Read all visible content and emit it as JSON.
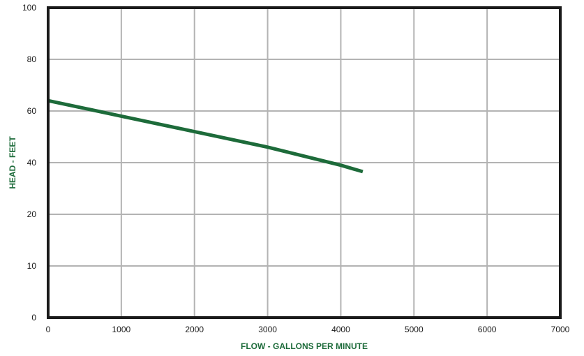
{
  "chart_data": {
    "type": "line",
    "title": "",
    "xlabel": "FLOW - GALLONS PER MINUTE",
    "ylabel": "HEAD - FEET",
    "xlim": [
      0,
      7000
    ],
    "x_ticks": [
      "0",
      "1000",
      "2000",
      "3000",
      "4000",
      "5000",
      "6000",
      "7000"
    ],
    "x_tick_values": [
      0,
      1000,
      2000,
      3000,
      4000,
      5000,
      6000,
      7000
    ],
    "y_ticks": [
      "0",
      "10",
      "20",
      "40",
      "60",
      "80",
      "100"
    ],
    "grid": true,
    "legend": "none",
    "series": [
      {
        "color": "#1d6b3a",
        "points": [
          {
            "x": 0,
            "y": 64
          },
          {
            "x": 1000,
            "y": 58
          },
          {
            "x": 2000,
            "y": 52
          },
          {
            "x": 3000,
            "y": 46
          },
          {
            "x": 4000,
            "y": 39
          },
          {
            "x": 4300,
            "y": 36.5
          }
        ]
      }
    ],
    "colors": {
      "grid": "#b3b3b3",
      "frame": "#1a1a1a",
      "series": "#1d6b3a",
      "axis_title": "#1d6b3a"
    }
  }
}
